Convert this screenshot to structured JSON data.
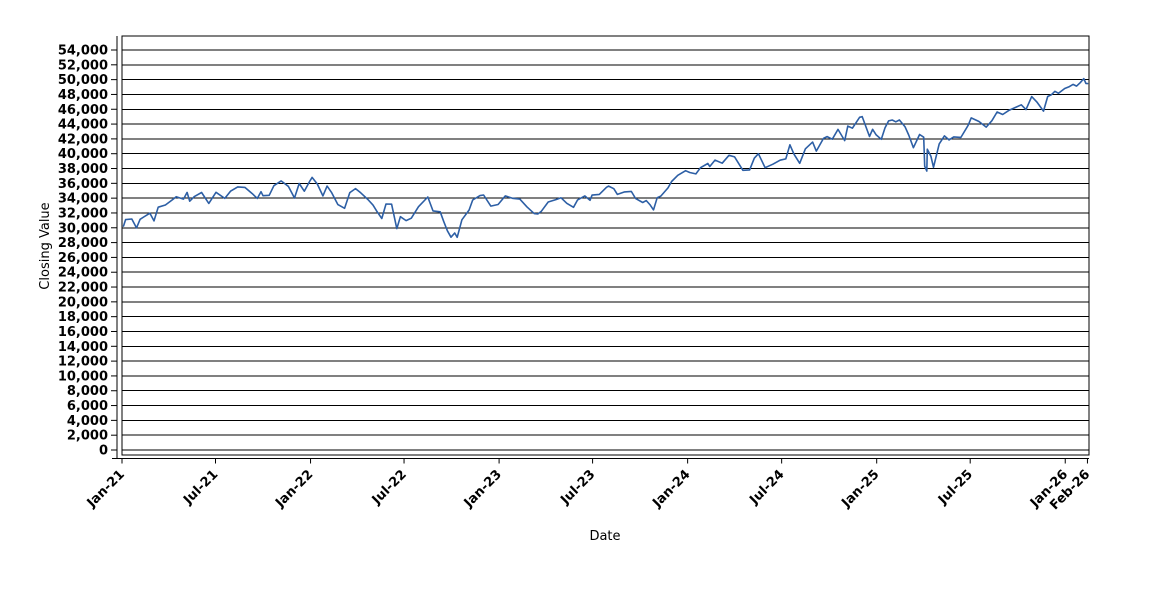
{
  "chart_data": {
    "type": "line",
    "title": "",
    "xlabel": "Date",
    "ylabel": "Closing Value",
    "legend": "none",
    "grid": "horizontal",
    "background": "#ffffff",
    "plot_border_color": "#000000",
    "gridline_color": "#000000",
    "line_color": "#2d5fa5",
    "ylim": [
      0,
      54000
    ],
    "y_tick_step": 2000,
    "y_tick_labels": [
      "0",
      "2,000",
      "4,000",
      "6,000",
      "8,000",
      "10,000",
      "12,000",
      "14,000",
      "16,000",
      "18,000",
      "20,000",
      "22,000",
      "24,000",
      "26,000",
      "28,000",
      "30,000",
      "32,000",
      "34,000",
      "36,000",
      "38,000",
      "40,000",
      "42,000",
      "44,000",
      "46,000",
      "48,000",
      "50,000",
      "52,000",
      "54,000"
    ],
    "x_ticks": [
      {
        "label": "Jan-21",
        "date": "2021-01-01"
      },
      {
        "label": "Jul-21",
        "date": "2021-07-01"
      },
      {
        "label": "Jan-22",
        "date": "2022-01-01"
      },
      {
        "label": "Jul-22",
        "date": "2022-07-01"
      },
      {
        "label": "Jan-23",
        "date": "2023-01-01"
      },
      {
        "label": "Jul-23",
        "date": "2023-07-01"
      },
      {
        "label": "Jan-24",
        "date": "2024-01-01"
      },
      {
        "label": "Jul-24",
        "date": "2024-07-01"
      },
      {
        "label": "Jan-25",
        "date": "2025-01-01"
      },
      {
        "label": "Jul-25",
        "date": "2025-07-01"
      },
      {
        "label": "Jan-26",
        "date": "2026-01-01"
      },
      {
        "label": "Feb-26",
        "date": "2026-02-13"
      }
    ],
    "x_range": [
      "2021-01-01",
      "2026-02-16"
    ],
    "series": [
      {
        "name": "Closing Value",
        "points": [
          [
            "2021-01-04",
            30224
          ],
          [
            "2021-01-08",
            31098
          ],
          [
            "2021-01-20",
            31188
          ],
          [
            "2021-01-29",
            29983
          ],
          [
            "2021-02-05",
            31148
          ],
          [
            "2021-02-12",
            31458
          ],
          [
            "2021-02-24",
            31962
          ],
          [
            "2021-03-04",
            30924
          ],
          [
            "2021-03-12",
            32779
          ],
          [
            "2021-03-26",
            33073
          ],
          [
            "2021-04-09",
            33801
          ],
          [
            "2021-04-16",
            34201
          ],
          [
            "2021-04-30",
            33875
          ],
          [
            "2021-05-07",
            34778
          ],
          [
            "2021-05-12",
            33588
          ],
          [
            "2021-05-21",
            34208
          ],
          [
            "2021-06-04",
            34756
          ],
          [
            "2021-06-18",
            33290
          ],
          [
            "2021-07-02",
            34786
          ],
          [
            "2021-07-19",
            33962
          ],
          [
            "2021-07-30",
            34935
          ],
          [
            "2021-08-13",
            35515
          ],
          [
            "2021-08-27",
            35456
          ],
          [
            "2021-09-10",
            34608
          ],
          [
            "2021-09-20",
            33970
          ],
          [
            "2021-09-27",
            34869
          ],
          [
            "2021-10-01",
            34326
          ],
          [
            "2021-10-13",
            34378
          ],
          [
            "2021-10-22",
            35677
          ],
          [
            "2021-11-05",
            36328
          ],
          [
            "2021-11-19",
            35602
          ],
          [
            "2021-12-01",
            34022
          ],
          [
            "2021-12-10",
            35971
          ],
          [
            "2021-12-20",
            34932
          ],
          [
            "2021-12-31",
            36338
          ],
          [
            "2022-01-04",
            36800
          ],
          [
            "2022-01-14",
            35912
          ],
          [
            "2022-01-25",
            34297
          ],
          [
            "2022-02-02",
            35629
          ],
          [
            "2022-02-11",
            34738
          ],
          [
            "2022-02-23",
            33132
          ],
          [
            "2022-03-08",
            32633
          ],
          [
            "2022-03-18",
            34755
          ],
          [
            "2022-03-29",
            35294
          ],
          [
            "2022-04-08",
            34721
          ],
          [
            "2022-04-22",
            33811
          ],
          [
            "2022-05-02",
            33061
          ],
          [
            "2022-05-09",
            32246
          ],
          [
            "2022-05-19",
            31253
          ],
          [
            "2022-05-27",
            33213
          ],
          [
            "2022-06-07",
            33180
          ],
          [
            "2022-06-17",
            29889
          ],
          [
            "2022-06-24",
            31500
          ],
          [
            "2022-07-05",
            30968
          ],
          [
            "2022-07-15",
            31288
          ],
          [
            "2022-07-29",
            32845
          ],
          [
            "2022-08-16",
            34152
          ],
          [
            "2022-08-26",
            32283
          ],
          [
            "2022-09-09",
            32152
          ],
          [
            "2022-09-16",
            30822
          ],
          [
            "2022-09-23",
            29590
          ],
          [
            "2022-09-30",
            28726
          ],
          [
            "2022-10-07",
            29297
          ],
          [
            "2022-10-12",
            28714
          ],
          [
            "2022-10-21",
            31083
          ],
          [
            "2022-11-04",
            32403
          ],
          [
            "2022-11-11",
            33748
          ],
          [
            "2022-11-25",
            34347
          ],
          [
            "2022-12-02",
            34430
          ],
          [
            "2022-12-16",
            32920
          ],
          [
            "2022-12-30",
            33147
          ],
          [
            "2023-01-13",
            34303
          ],
          [
            "2023-01-27",
            33978
          ],
          [
            "2023-02-03",
            33926
          ],
          [
            "2023-02-10",
            33869
          ],
          [
            "2023-02-24",
            32817
          ],
          [
            "2023-03-10",
            31910
          ],
          [
            "2023-03-17",
            31862
          ],
          [
            "2023-03-24",
            32238
          ],
          [
            "2023-04-06",
            33485
          ],
          [
            "2023-04-21",
            33809
          ],
          [
            "2023-05-01",
            34052
          ],
          [
            "2023-05-12",
            33301
          ],
          [
            "2023-05-25",
            32764
          ],
          [
            "2023-06-02",
            33763
          ],
          [
            "2023-06-16",
            34299
          ],
          [
            "2023-06-26",
            33715
          ],
          [
            "2023-06-30",
            34408
          ],
          [
            "2023-07-14",
            34509
          ],
          [
            "2023-07-28",
            35459
          ],
          [
            "2023-08-01",
            35631
          ],
          [
            "2023-08-11",
            35281
          ],
          [
            "2023-08-18",
            34501
          ],
          [
            "2023-09-01",
            34838
          ],
          [
            "2023-09-14",
            34907
          ],
          [
            "2023-09-22",
            33964
          ],
          [
            "2023-10-06",
            33408
          ],
          [
            "2023-10-13",
            33670
          ],
          [
            "2023-10-20",
            33127
          ],
          [
            "2023-10-27",
            32418
          ],
          [
            "2023-11-03",
            34061
          ],
          [
            "2023-11-10",
            34283
          ],
          [
            "2023-11-24",
            35390
          ],
          [
            "2023-12-01",
            36246
          ],
          [
            "2023-12-13",
            37090
          ],
          [
            "2023-12-28",
            37710
          ],
          [
            "2024-01-05",
            37466
          ],
          [
            "2024-01-17",
            37267
          ],
          [
            "2024-01-26",
            38109
          ],
          [
            "2024-02-09",
            38672
          ],
          [
            "2024-02-13",
            38273
          ],
          [
            "2024-02-23",
            39132
          ],
          [
            "2024-03-08",
            38723
          ],
          [
            "2024-03-21",
            39781
          ],
          [
            "2024-04-01",
            39567
          ],
          [
            "2024-04-17",
            37753
          ],
          [
            "2024-04-30",
            37816
          ],
          [
            "2024-05-09",
            39388
          ],
          [
            "2024-05-17",
            40004
          ],
          [
            "2024-05-30",
            38111
          ],
          [
            "2024-06-14",
            38589
          ],
          [
            "2024-06-28",
            39119
          ],
          [
            "2024-07-09",
            39292
          ],
          [
            "2024-07-17",
            41198
          ],
          [
            "2024-07-25",
            39935
          ],
          [
            "2024-08-05",
            38703
          ],
          [
            "2024-08-16",
            40660
          ],
          [
            "2024-08-30",
            41563
          ],
          [
            "2024-09-06",
            40345
          ],
          [
            "2024-09-20",
            42063
          ],
          [
            "2024-09-27",
            42313
          ],
          [
            "2024-10-07",
            41954
          ],
          [
            "2024-10-18",
            43276
          ],
          [
            "2024-10-31",
            41763
          ],
          [
            "2024-11-06",
            43730
          ],
          [
            "2024-11-15",
            43445
          ],
          [
            "2024-11-29",
            44911
          ],
          [
            "2024-12-04",
            45014
          ],
          [
            "2024-12-18",
            42327
          ],
          [
            "2024-12-24",
            43297
          ],
          [
            "2024-12-31",
            42544
          ],
          [
            "2025-01-10",
            41938
          ],
          [
            "2025-01-17",
            43488
          ],
          [
            "2025-01-24",
            44424
          ],
          [
            "2025-01-31",
            44545
          ],
          [
            "2025-02-07",
            44303
          ],
          [
            "2025-02-14",
            44546
          ],
          [
            "2025-02-25",
            43621
          ],
          [
            "2025-03-04",
            42521
          ],
          [
            "2025-03-13",
            40814
          ],
          [
            "2025-03-25",
            42587
          ],
          [
            "2025-04-02",
            42225
          ],
          [
            "2025-04-04",
            38315
          ],
          [
            "2025-04-08",
            37646
          ],
          [
            "2025-04-09",
            40608
          ],
          [
            "2025-04-16",
            39669
          ],
          [
            "2025-04-21",
            38170
          ],
          [
            "2025-05-02",
            41317
          ],
          [
            "2025-05-12",
            42410
          ],
          [
            "2025-05-21",
            41860
          ],
          [
            "2025-05-30",
            42270
          ],
          [
            "2025-06-13",
            42198
          ],
          [
            "2025-06-27",
            43819
          ],
          [
            "2025-07-03",
            44829
          ],
          [
            "2025-07-18",
            44342
          ],
          [
            "2025-08-01",
            43589
          ],
          [
            "2025-08-12",
            44458
          ],
          [
            "2025-08-22",
            45632
          ],
          [
            "2025-09-02",
            45296
          ],
          [
            "2025-09-15",
            45883
          ],
          [
            "2025-09-29",
            46317
          ],
          [
            "2025-10-08",
            46602
          ],
          [
            "2025-10-17",
            45952
          ],
          [
            "2025-10-28",
            47707
          ],
          [
            "2025-11-07",
            46987
          ],
          [
            "2025-11-20",
            45752
          ],
          [
            "2025-11-28",
            47716
          ],
          [
            "2025-12-05",
            47954
          ],
          [
            "2025-12-12",
            48424
          ],
          [
            "2025-12-19",
            48150
          ],
          [
            "2025-12-31",
            48808
          ],
          [
            "2026-01-09",
            49061
          ],
          [
            "2026-01-16",
            49350
          ],
          [
            "2026-01-23",
            49128
          ],
          [
            "2026-01-30",
            49587
          ],
          [
            "2026-02-06",
            50143
          ],
          [
            "2026-02-10",
            49492
          ],
          [
            "2026-02-13",
            49470
          ]
        ]
      }
    ]
  }
}
